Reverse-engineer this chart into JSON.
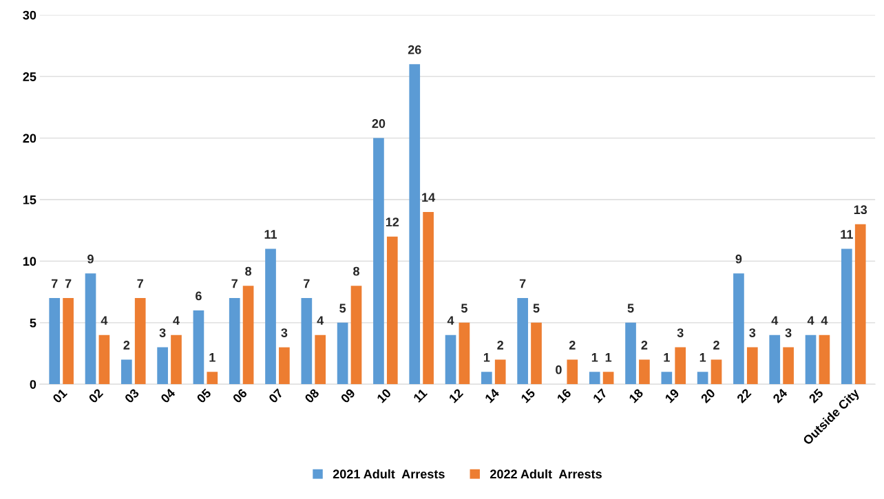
{
  "chart_data": {
    "type": "bar",
    "categories": [
      "01",
      "02",
      "03",
      "04",
      "05",
      "06",
      "07",
      "08",
      "09",
      "10",
      "11",
      "12",
      "14",
      "15",
      "16",
      "17",
      "18",
      "19",
      "20",
      "22",
      "24",
      "25",
      "Outside City"
    ],
    "series": [
      {
        "name": "2021 Adult  Arrests",
        "color": "#5b9bd5",
        "values": [
          7,
          9,
          2,
          3,
          6,
          7,
          11,
          7,
          5,
          20,
          26,
          4,
          1,
          7,
          0,
          1,
          5,
          1,
          1,
          9,
          4,
          4,
          11
        ]
      },
      {
        "name": "2022 Adult  Arrests",
        "color": "#ed7d31",
        "values": [
          7,
          4,
          7,
          4,
          1,
          8,
          3,
          4,
          8,
          12,
          14,
          5,
          2,
          5,
          2,
          1,
          2,
          3,
          2,
          3,
          3,
          4,
          13
        ]
      }
    ],
    "ylim": [
      0,
      30
    ],
    "yticks": [
      0,
      5,
      10,
      15,
      20,
      25,
      30
    ],
    "grid": "y",
    "legend": "bottom",
    "data_labels": true
  }
}
